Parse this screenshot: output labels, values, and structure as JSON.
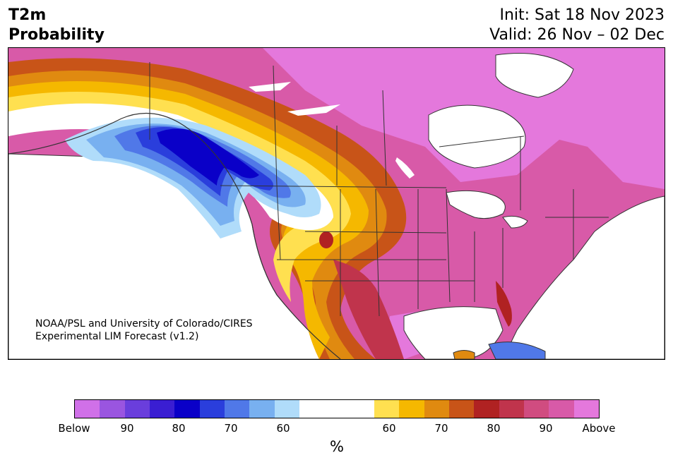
{
  "title": {
    "left_line1": "T2m",
    "left_line2": "Probability",
    "right_line1": "Init: Sat 18 Nov 2023",
    "right_line2": "Valid: 26 Nov – 02 Dec"
  },
  "map": {
    "credit_line1": "NOAA/PSL and University of Colorado/CIRES",
    "credit_line2": "Experimental LIM Forecast (v1.2)",
    "palette": {
      "below_extreme": "#d070e8",
      "b90": "#9a55e0",
      "b85": "#6a3edc",
      "b80": "#3a1ed2",
      "b75": "#0a00c8",
      "b70": "#2a3edc",
      "b65": "#5078e8",
      "b60": "#78b0f0",
      "b55": "#b0dcfa",
      "neutral": "#ffffff",
      "a55": "#ffe050",
      "a60": "#f5b800",
      "a65": "#e08a10",
      "a70": "#c85418",
      "a75": "#b02222",
      "a80": "#c0344c",
      "a85": "#d04c80",
      "a90": "#d85aa8",
      "above_extreme": "#e478dc"
    }
  },
  "colorbar": {
    "colors": [
      "#d070e8",
      "#9a55e0",
      "#6a3edc",
      "#3a1ed2",
      "#0a00c8",
      "#2a3edc",
      "#5078e8",
      "#78b0f0",
      "#b0dcfa",
      "#ffffff",
      "#ffffff",
      "#ffffff",
      "#ffe050",
      "#f5b800",
      "#e08a10",
      "#c85418",
      "#b02222",
      "#c0344c",
      "#d04c80",
      "#d85aa8",
      "#e478dc"
    ],
    "labels": [
      "Below",
      "90",
      "80",
      "70",
      "60",
      "60",
      "70",
      "80",
      "90",
      "Above"
    ],
    "units": "%"
  }
}
